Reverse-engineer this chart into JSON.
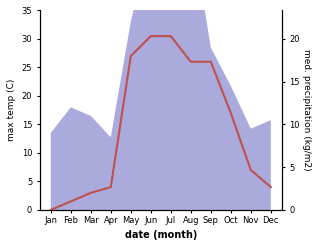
{
  "months": [
    "Jan",
    "Feb",
    "Mar",
    "Apr",
    "May",
    "Jun",
    "Jul",
    "Aug",
    "Sep",
    "Oct",
    "Nov",
    "Dec"
  ],
  "temperature": [
    0.0,
    1.5,
    3.0,
    4.0,
    27.0,
    30.5,
    30.5,
    26.0,
    26.0,
    17.0,
    7.0,
    4.0
  ],
  "precipitation": [
    9.0,
    12.0,
    11.0,
    8.5,
    22.0,
    31.5,
    27.0,
    33.5,
    19.0,
    14.5,
    9.5,
    10.5
  ],
  "temp_color": "#c0504d",
  "precip_fill_color": "#aaaadd",
  "temp_ylim": [
    0,
    35
  ],
  "precip_ylim_max": 23.33,
  "temp_yticks": [
    0,
    5,
    10,
    15,
    20,
    25,
    30,
    35
  ],
  "precip_yticks": [
    0,
    5,
    10,
    15,
    20
  ],
  "xlabel": "date (month)",
  "ylabel_left": "max temp (C)",
  "ylabel_right": "med. precipitation (kg/m2)",
  "bg_color": "#ffffff"
}
